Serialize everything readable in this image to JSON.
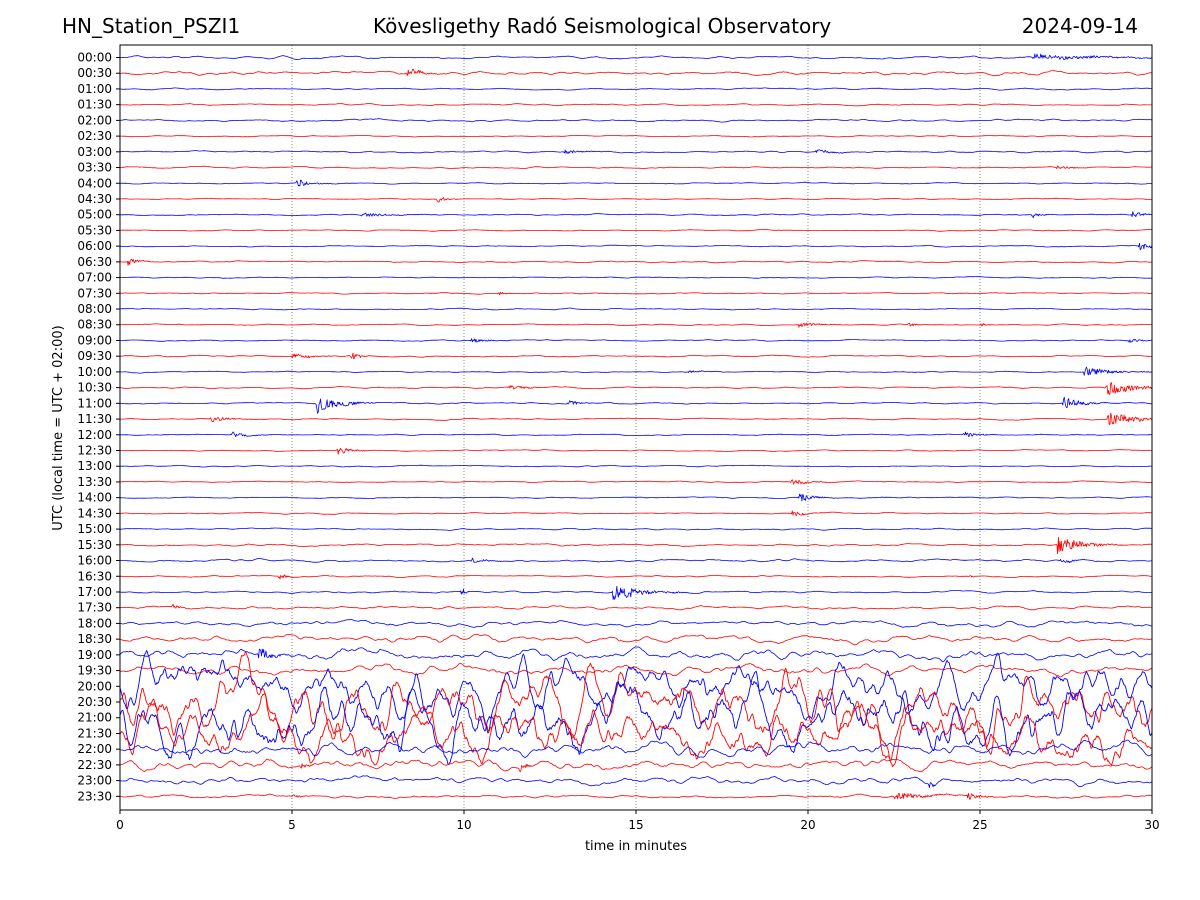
{
  "header": {
    "station": "HN_Station_PSZI1",
    "observatory": "Kövesligethy Radó Seismological Observatory",
    "date": "2024-09-14"
  },
  "chart_data": {
    "type": "line",
    "title": "Kövesligethy Radó Seismological Observatory",
    "subtitle_left": "HN_Station_PSZI1",
    "subtitle_right": "2024-09-14",
    "xlabel": "time in minutes",
    "ylabel": "UTC (local time = UTC + 02:00)",
    "xlim": [
      0,
      30
    ],
    "xticks": [
      "0",
      "5",
      "10",
      "15",
      "20",
      "25",
      "30"
    ],
    "xgrid": [
      5,
      10,
      15,
      20,
      25
    ],
    "grid": "vertical dotted",
    "colors": {
      "even_row": "#0000ff",
      "odd_row": "#ff0000"
    },
    "rows": [
      {
        "label": "00:00",
        "noise": 0.25,
        "events": [
          {
            "t": 26.5,
            "amp": 0.4,
            "dur": 3.5
          }
        ]
      },
      {
        "label": "00:30",
        "noise": 0.35,
        "events": [
          {
            "t": 8.3,
            "amp": 0.5,
            "dur": 1.0
          }
        ]
      },
      {
        "label": "01:00",
        "noise": 0.15,
        "events": []
      },
      {
        "label": "01:30",
        "noise": 0.15,
        "events": []
      },
      {
        "label": "02:00",
        "noise": 0.2,
        "events": []
      },
      {
        "label": "02:30",
        "noise": 0.12,
        "events": []
      },
      {
        "label": "03:00",
        "noise": 0.18,
        "events": [
          {
            "t": 12.9,
            "amp": 0.3,
            "dur": 1.0
          },
          {
            "t": 20.2,
            "amp": 0.3,
            "dur": 1.0
          }
        ]
      },
      {
        "label": "03:30",
        "noise": 0.15,
        "events": [
          {
            "t": 27.2,
            "amp": 0.3,
            "dur": 0.8
          }
        ]
      },
      {
        "label": "04:00",
        "noise": 0.12,
        "events": [
          {
            "t": 5.1,
            "amp": 0.6,
            "dur": 0.8
          }
        ]
      },
      {
        "label": "04:30",
        "noise": 0.12,
        "events": [
          {
            "t": 9.2,
            "amp": 0.5,
            "dur": 0.5
          }
        ]
      },
      {
        "label": "05:00",
        "noise": 0.15,
        "events": [
          {
            "t": 7.0,
            "amp": 0.3,
            "dur": 1.5
          },
          {
            "t": 26.5,
            "amp": 0.5,
            "dur": 0.5
          },
          {
            "t": 29.4,
            "amp": 0.6,
            "dur": 0.5
          }
        ]
      },
      {
        "label": "05:30",
        "noise": 0.12,
        "events": []
      },
      {
        "label": "06:00",
        "noise": 0.12,
        "events": [
          {
            "t": 29.6,
            "amp": 0.6,
            "dur": 0.8
          }
        ]
      },
      {
        "label": "06:30",
        "noise": 0.15,
        "events": [
          {
            "t": 0.2,
            "amp": 0.6,
            "dur": 0.5
          }
        ]
      },
      {
        "label": "07:00",
        "noise": 0.12,
        "events": []
      },
      {
        "label": "07:30",
        "noise": 0.12,
        "events": [
          {
            "t": 11.0,
            "amp": 0.4,
            "dur": 0.3
          }
        ]
      },
      {
        "label": "08:00",
        "noise": 0.15,
        "events": []
      },
      {
        "label": "08:30",
        "noise": 0.12,
        "events": [
          {
            "t": 19.7,
            "amp": 0.4,
            "dur": 1.0
          },
          {
            "t": 22.9,
            "amp": 0.6,
            "dur": 0.3
          },
          {
            "t": 25.0,
            "amp": 0.5,
            "dur": 0.2
          }
        ]
      },
      {
        "label": "09:00",
        "noise": 0.12,
        "events": [
          {
            "t": 10.2,
            "amp": 0.4,
            "dur": 0.8
          },
          {
            "t": 29.3,
            "amp": 0.3,
            "dur": 0.8
          }
        ]
      },
      {
        "label": "09:30",
        "noise": 0.15,
        "events": [
          {
            "t": 5.0,
            "amp": 0.4,
            "dur": 1.0
          },
          {
            "t": 6.7,
            "amp": 0.6,
            "dur": 0.5
          }
        ]
      },
      {
        "label": "10:00",
        "noise": 0.12,
        "events": [
          {
            "t": 16.5,
            "amp": 0.2,
            "dur": 1.0
          },
          {
            "t": 28.0,
            "amp": 0.7,
            "dur": 1.5
          }
        ]
      },
      {
        "label": "10:30",
        "noise": 0.15,
        "events": [
          {
            "t": 11.3,
            "amp": 0.3,
            "dur": 1.0
          },
          {
            "t": 28.6,
            "amp": 1.2,
            "dur": 1.5
          }
        ]
      },
      {
        "label": "11:00",
        "noise": 0.15,
        "events": [
          {
            "t": 5.7,
            "amp": 1.3,
            "dur": 1.2
          },
          {
            "t": 13.0,
            "amp": 0.6,
            "dur": 0.5
          },
          {
            "t": 27.4,
            "amp": 0.8,
            "dur": 1.0
          }
        ]
      },
      {
        "label": "11:30",
        "noise": 0.15,
        "events": [
          {
            "t": 2.6,
            "amp": 0.5,
            "dur": 0.8
          },
          {
            "t": 28.7,
            "amp": 1.0,
            "dur": 1.5
          }
        ]
      },
      {
        "label": "12:00",
        "noise": 0.12,
        "events": [
          {
            "t": 3.2,
            "amp": 0.5,
            "dur": 0.8
          },
          {
            "t": 24.5,
            "amp": 0.4,
            "dur": 0.8
          }
        ]
      },
      {
        "label": "12:30",
        "noise": 0.12,
        "events": [
          {
            "t": 6.3,
            "amp": 0.6,
            "dur": 0.8
          }
        ]
      },
      {
        "label": "13:00",
        "noise": 0.12,
        "events": []
      },
      {
        "label": "13:30",
        "noise": 0.12,
        "events": [
          {
            "t": 19.5,
            "amp": 0.4,
            "dur": 1.0
          }
        ]
      },
      {
        "label": "14:00",
        "noise": 0.12,
        "events": [
          {
            "t": 19.7,
            "amp": 0.6,
            "dur": 0.8
          }
        ]
      },
      {
        "label": "14:30",
        "noise": 0.12,
        "events": [
          {
            "t": 19.5,
            "amp": 0.5,
            "dur": 0.6
          }
        ]
      },
      {
        "label": "15:00",
        "noise": 0.15,
        "events": []
      },
      {
        "label": "15:30",
        "noise": 0.2,
        "events": [
          {
            "t": 27.2,
            "amp": 1.4,
            "dur": 1.3
          }
        ]
      },
      {
        "label": "16:00",
        "noise": 0.25,
        "events": [
          {
            "t": 10.2,
            "amp": 0.4,
            "dur": 0.8
          },
          {
            "t": 27.3,
            "amp": 0.3,
            "dur": 0.8
          }
        ]
      },
      {
        "label": "16:30",
        "noise": 0.15,
        "events": [
          {
            "t": 4.6,
            "amp": 0.8,
            "dur": 0.3
          },
          {
            "t": 24.7,
            "amp": 1.0,
            "dur": 0.15
          }
        ]
      },
      {
        "label": "17:00",
        "noise": 0.18,
        "events": [
          {
            "t": 9.9,
            "amp": 1.0,
            "dur": 0.2
          },
          {
            "t": 14.3,
            "amp": 1.2,
            "dur": 1.5
          }
        ]
      },
      {
        "label": "17:30",
        "noise": 0.3,
        "events": [
          {
            "t": 1.5,
            "amp": 0.4,
            "dur": 0.4
          }
        ]
      },
      {
        "label": "18:00",
        "noise": 0.5,
        "events": []
      },
      {
        "label": "18:30",
        "noise": 0.7,
        "events": []
      },
      {
        "label": "19:00",
        "noise": 1.0,
        "events": [
          {
            "t": 4.0,
            "amp": 0.8,
            "dur": 0.8
          }
        ]
      },
      {
        "label": "19:30",
        "noise": 0.9,
        "events": []
      },
      {
        "label": "20:00",
        "noise": 2.2,
        "events": []
      },
      {
        "label": "20:30",
        "noise": 2.6,
        "events": []
      },
      {
        "label": "21:00",
        "noise": 2.8,
        "events": []
      },
      {
        "label": "21:30",
        "noise": 2.4,
        "events": []
      },
      {
        "label": "22:00",
        "noise": 1.3,
        "events": []
      },
      {
        "label": "22:30",
        "noise": 0.9,
        "events": [
          {
            "t": 5.2,
            "amp": 1.0,
            "dur": 0.3
          },
          {
            "t": 11.6,
            "amp": 0.9,
            "dur": 0.3
          }
        ]
      },
      {
        "label": "23:00",
        "noise": 0.7,
        "events": [
          {
            "t": 23.5,
            "amp": 0.7,
            "dur": 0.3
          }
        ]
      },
      {
        "label": "23:30",
        "noise": 0.3,
        "events": [
          {
            "t": 5.0,
            "amp": 0.3,
            "dur": 0.5
          },
          {
            "t": 22.5,
            "amp": 0.6,
            "dur": 1.5
          },
          {
            "t": 24.6,
            "amp": 0.7,
            "dur": 0.6
          }
        ]
      }
    ]
  }
}
